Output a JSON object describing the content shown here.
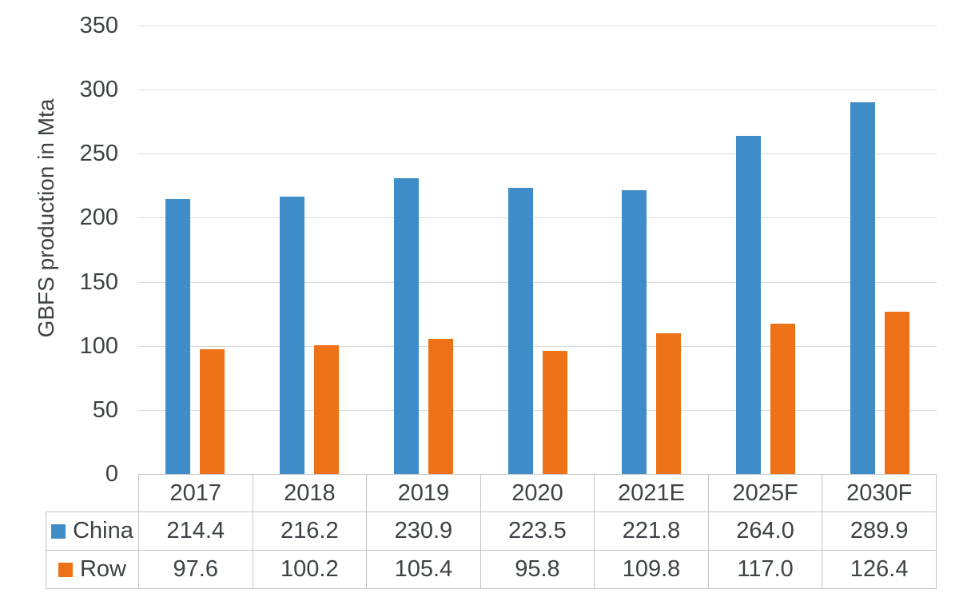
{
  "colors": {
    "china_blue": "#3e8dc8",
    "row_orange": "#ed7217",
    "grid_line": "#d9d9d9",
    "table_border": "#c4c4c4",
    "text": "#3d4247",
    "background": "#ffffff"
  },
  "chart_data": {
    "type": "bar",
    "title": "",
    "xlabel": "",
    "ylabel": "GBFS production in Mta",
    "categories": [
      "2017",
      "2018",
      "2019",
      "2020",
      "2021E",
      "2025F",
      "2030F"
    ],
    "series": [
      {
        "name": "China",
        "color": "#3e8dc8",
        "values": [
          214.4,
          216.2,
          230.9,
          223.5,
          221.8,
          264.0,
          289.9
        ]
      },
      {
        "name": "Row",
        "color": "#ed7217",
        "values": [
          97.6,
          100.2,
          105.4,
          95.8,
          109.8,
          117.0,
          126.4
        ]
      }
    ],
    "ylim": [
      0,
      350
    ],
    "ytick_step": 50,
    "ytick_labels": [
      "0",
      "50",
      "100",
      "150",
      "200",
      "250",
      "300",
      "350"
    ],
    "grid": "horizontal gridlines every 50, light gray",
    "legend_position": "left column of data table below chart"
  },
  "data_table": {
    "column_headers": [
      "2017",
      "2018",
      "2019",
      "2020",
      "2021E",
      "2025F",
      "2030F"
    ],
    "rows": [
      {
        "label": "China",
        "swatch_color": "#3e8dc8",
        "values": [
          "214.4",
          "216.2",
          "230.9",
          "223.5",
          "221.8",
          "264.0",
          "289.9"
        ]
      },
      {
        "label": "Row",
        "swatch_color": "#ed7217",
        "values": [
          "97.6",
          "100.2",
          "105.4",
          "95.8",
          "109.8",
          "117.0",
          "126.4"
        ]
      }
    ]
  }
}
